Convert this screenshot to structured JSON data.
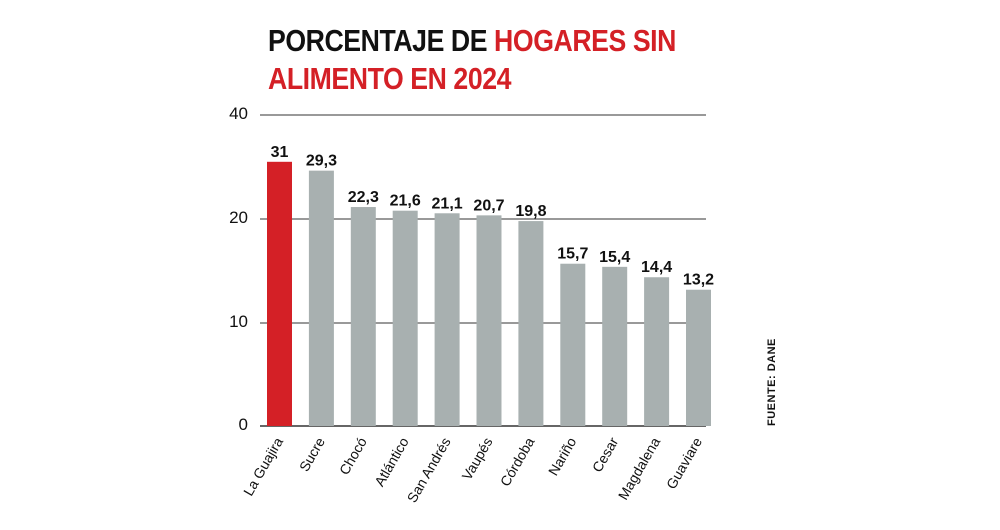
{
  "title": {
    "line1_black": "PORCENTAJE DE ",
    "line1_red": "HOGARES SIN",
    "line2_red": "ALIMENTO EN 2024"
  },
  "source": "FUENTE: DANE",
  "colors": {
    "highlight": "#d42026",
    "bar": "#a8b0b0",
    "text": "#111111",
    "grid": "#333333"
  },
  "chart_data": {
    "type": "bar",
    "title": "PORCENTAJE DE HOGARES SIN ALIMENTO EN 2024",
    "categories": [
      "La Guajira",
      "Sucre",
      "Chocó",
      "Atlántico",
      "San Andrés",
      "Vaupés",
      "Córdoba",
      "Nariño",
      "Cesar",
      "Magdalena",
      "Guaviare"
    ],
    "values": [
      31,
      29.3,
      22.3,
      21.6,
      21.1,
      20.7,
      19.8,
      15.7,
      15.4,
      14.4,
      13.2
    ],
    "value_labels": [
      "31",
      "29,3",
      "22,3",
      "21,6",
      "21,1",
      "20,7",
      "19,8",
      "15,7",
      "15,4",
      "14,4",
      "13,2"
    ],
    "highlight_index": 0,
    "yticks": [
      0,
      10,
      20,
      40
    ],
    "ylim": [
      0,
      40
    ],
    "xlabel": "",
    "ylabel": "",
    "grid": true
  }
}
